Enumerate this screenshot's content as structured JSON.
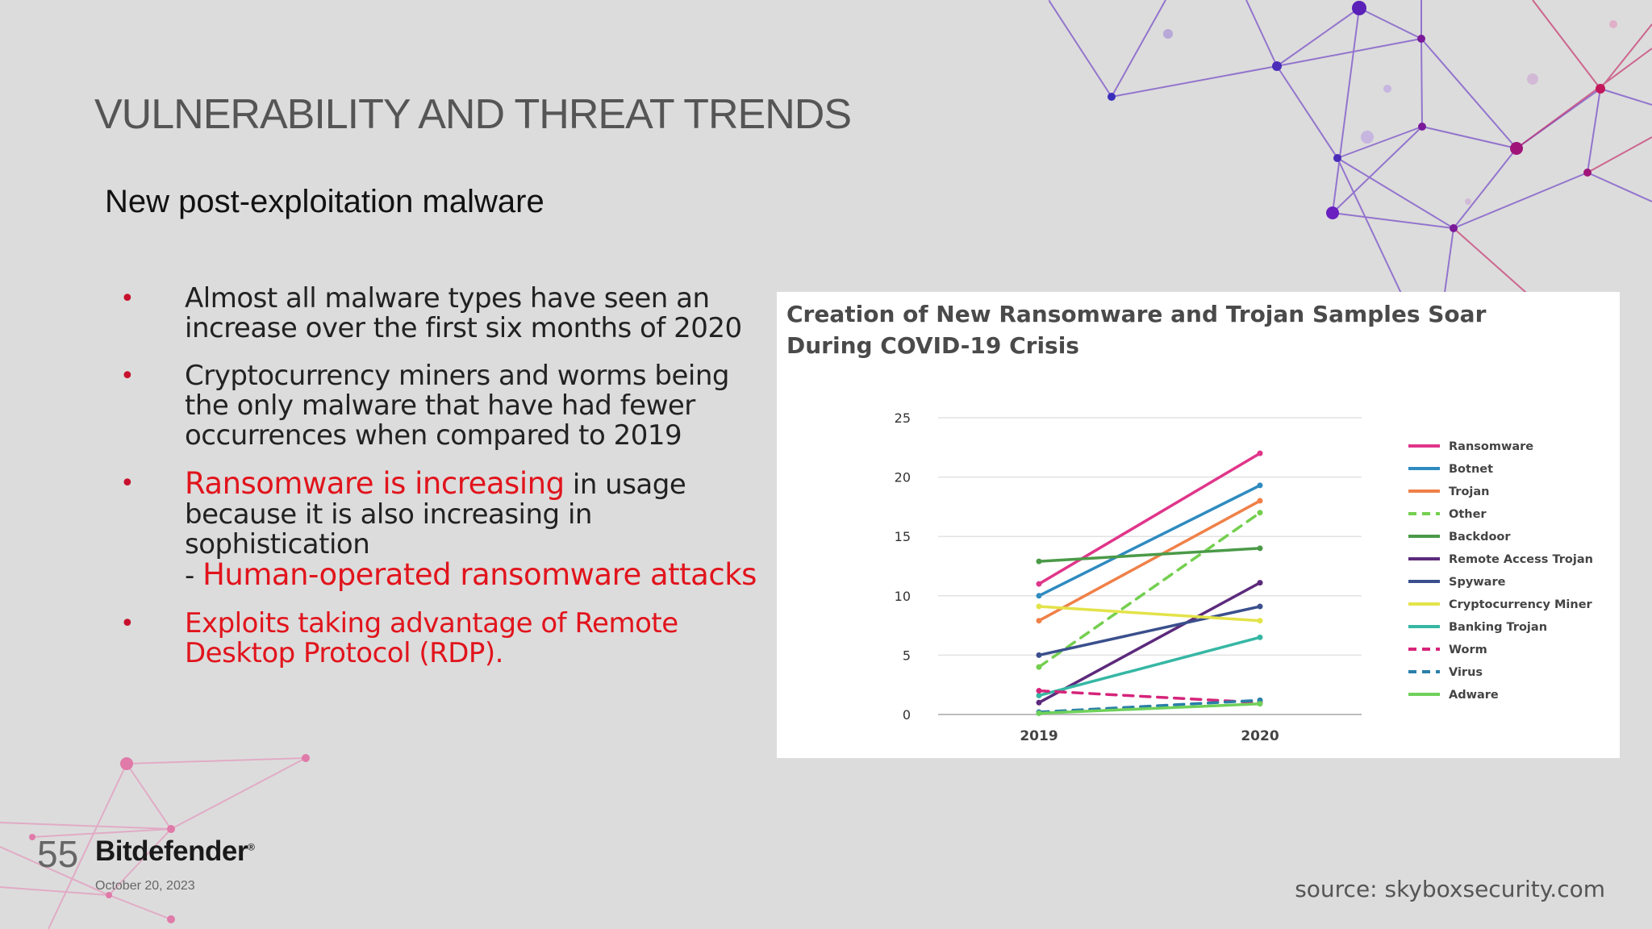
{
  "slide": {
    "title": "VULNERABILITY AND THREAT TRENDS",
    "subtitle": "New post-exploitation malware",
    "bullets": {
      "b1": "Almost all malware types have seen an increase over the first six months of 2020",
      "b2": "Cryptocurrency miners and worms being the only malware that have had fewer occurrences when compared to 2019",
      "b3_red": "Ransomware is increasing",
      "b3_rest": " in usage because it is also increasing in sophistication",
      "b3_dash": "- ",
      "b3_red2": "Human-operated ransomware attacks",
      "b4": "Exploits taking advantage of Remote Desktop Protocol (RDP)."
    },
    "bullet_symbol": "•",
    "footer": {
      "page_number": "55",
      "brand": "Bitdefender",
      "brand_mark": "®",
      "date": "October 20, 2023",
      "source": "source: skyboxsecurity.com"
    },
    "colors": {
      "background": "#dcdcdc",
      "accent_red": "#e1141c",
      "deco_purple": "#6a3dc9",
      "deco_magenta": "#c2185b"
    }
  },
  "chart_data": {
    "type": "line",
    "title": "Creation of New Ransomware and Trojan Samples Soar During COVID-19 Crisis",
    "title_line1": "Creation of New Ransomware and Trojan Samples Soar",
    "title_line2": "During COVID-19 Crisis",
    "xlabel": "",
    "ylabel": "",
    "x": [
      "2019",
      "2020"
    ],
    "ylim": [
      0,
      25
    ],
    "yticks": [
      0,
      5,
      10,
      15,
      20,
      25
    ],
    "grid": true,
    "legend_position": "right",
    "series": [
      {
        "name": "Ransomware",
        "values": [
          11,
          22
        ],
        "color": "#e0358a",
        "dashed": false
      },
      {
        "name": "Botnet",
        "values": [
          10,
          19.3
        ],
        "color": "#2e8bc0",
        "dashed": false
      },
      {
        "name": "Trojan",
        "values": [
          7.9,
          18
        ],
        "color": "#f08048",
        "dashed": false
      },
      {
        "name": "Other",
        "values": [
          4,
          17
        ],
        "color": "#74cf4f",
        "dashed": true
      },
      {
        "name": "Backdoor",
        "values": [
          12.9,
          14
        ],
        "color": "#4b9a48",
        "dashed": false
      },
      {
        "name": "Remote Access Trojan",
        "values": [
          1,
          11.1
        ],
        "color": "#5c2a7c",
        "dashed": false
      },
      {
        "name": "Spyware",
        "values": [
          5,
          9.1
        ],
        "color": "#3a4f8c",
        "dashed": false
      },
      {
        "name": "Cryptocurrency Miner",
        "values": [
          9.1,
          7.9
        ],
        "color": "#e3e34a",
        "dashed": false
      },
      {
        "name": "Banking Trojan",
        "values": [
          1.6,
          6.5
        ],
        "color": "#36b7a4",
        "dashed": false
      },
      {
        "name": "Worm",
        "values": [
          2,
          1
        ],
        "color": "#d6247a",
        "dashed": true
      },
      {
        "name": "Virus",
        "values": [
          0.2,
          1.2
        ],
        "color": "#2a7fa8",
        "dashed": true
      },
      {
        "name": "Adware",
        "values": [
          0.1,
          0.9
        ],
        "color": "#6fd15a",
        "dashed": false
      }
    ]
  }
}
